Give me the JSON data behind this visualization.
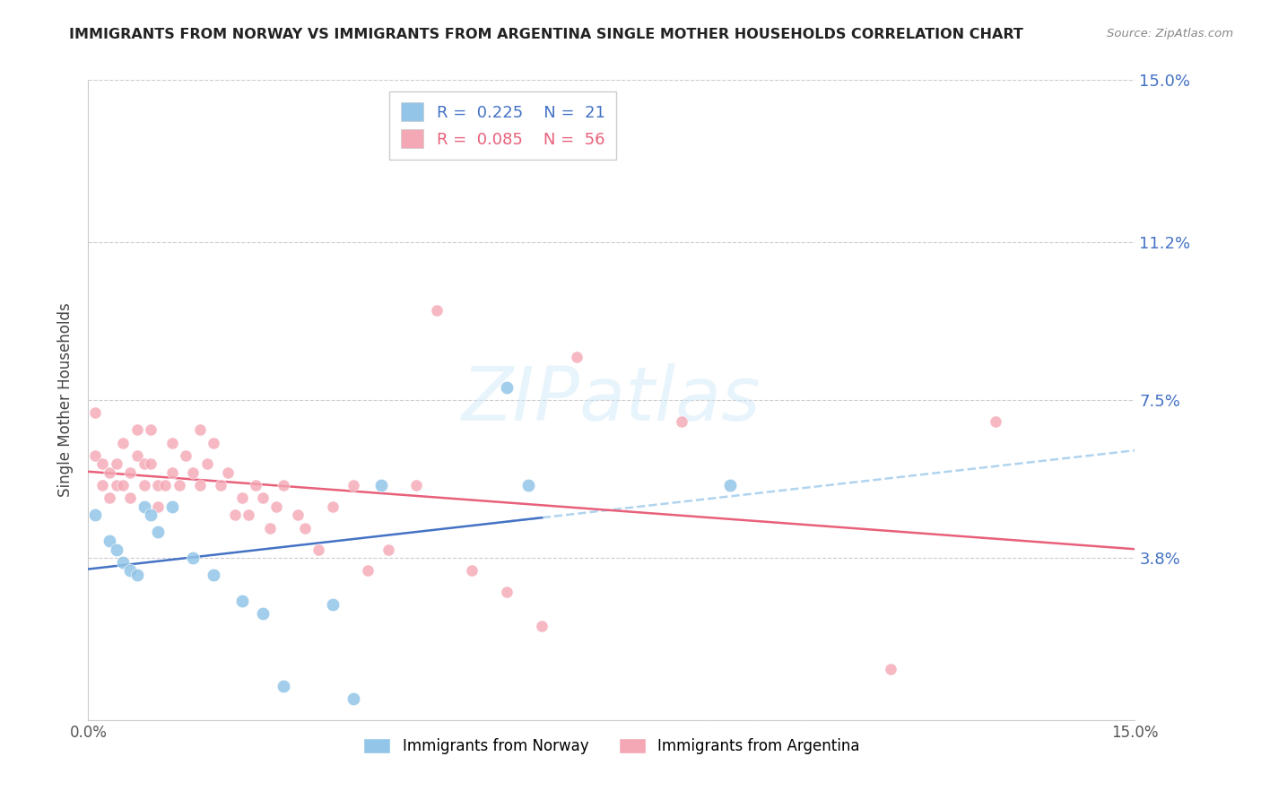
{
  "title": "IMMIGRANTS FROM NORWAY VS IMMIGRANTS FROM ARGENTINA SINGLE MOTHER HOUSEHOLDS CORRELATION CHART",
  "source": "Source: ZipAtlas.com",
  "ylabel": "Single Mother Households",
  "xlim": [
    0.0,
    0.15
  ],
  "ylim": [
    0.0,
    0.15
  ],
  "ytick_values": [
    0.0,
    0.038,
    0.075,
    0.112,
    0.15
  ],
  "ytick_labels": [
    "",
    "3.8%",
    "7.5%",
    "11.2%",
    "15.0%"
  ],
  "legend_norway_R": "0.225",
  "legend_norway_N": "21",
  "legend_argentina_R": "0.085",
  "legend_argentina_N": "56",
  "norway_color": "#92c5e8",
  "argentina_color": "#f4a7b5",
  "norway_line_color": "#4472c4",
  "argentina_line_color": "#e8607a",
  "norway_dash_color": "#a8d0ee",
  "watermark": "ZIPatlas",
  "norway_x": [
    0.001,
    0.003,
    0.004,
    0.005,
    0.006,
    0.007,
    0.008,
    0.009,
    0.01,
    0.012,
    0.015,
    0.018,
    0.022,
    0.025,
    0.028,
    0.035,
    0.038,
    0.042,
    0.06,
    0.063,
    0.092
  ],
  "norway_y": [
    0.048,
    0.042,
    0.04,
    0.037,
    0.035,
    0.034,
    0.05,
    0.048,
    0.044,
    0.05,
    0.038,
    0.034,
    0.028,
    0.025,
    0.008,
    0.027,
    0.005,
    0.055,
    0.078,
    0.055,
    0.055
  ],
  "argentina_x": [
    0.001,
    0.001,
    0.002,
    0.002,
    0.003,
    0.003,
    0.004,
    0.004,
    0.005,
    0.005,
    0.006,
    0.006,
    0.007,
    0.007,
    0.008,
    0.008,
    0.009,
    0.009,
    0.01,
    0.01,
    0.011,
    0.012,
    0.012,
    0.013,
    0.014,
    0.015,
    0.016,
    0.016,
    0.017,
    0.018,
    0.019,
    0.02,
    0.021,
    0.022,
    0.023,
    0.024,
    0.025,
    0.026,
    0.027,
    0.028,
    0.03,
    0.031,
    0.033,
    0.035,
    0.038,
    0.04,
    0.043,
    0.047,
    0.05,
    0.055,
    0.06,
    0.065,
    0.07,
    0.085,
    0.115,
    0.13
  ],
  "argentina_y": [
    0.072,
    0.062,
    0.06,
    0.055,
    0.058,
    0.052,
    0.06,
    0.055,
    0.065,
    0.055,
    0.058,
    0.052,
    0.068,
    0.062,
    0.06,
    0.055,
    0.068,
    0.06,
    0.055,
    0.05,
    0.055,
    0.065,
    0.058,
    0.055,
    0.062,
    0.058,
    0.068,
    0.055,
    0.06,
    0.065,
    0.055,
    0.058,
    0.048,
    0.052,
    0.048,
    0.055,
    0.052,
    0.045,
    0.05,
    0.055,
    0.048,
    0.045,
    0.04,
    0.05,
    0.055,
    0.035,
    0.04,
    0.055,
    0.096,
    0.035,
    0.03,
    0.022,
    0.085,
    0.07,
    0.012,
    0.07
  ],
  "norway_marker_size": 110,
  "argentina_marker_size": 90
}
